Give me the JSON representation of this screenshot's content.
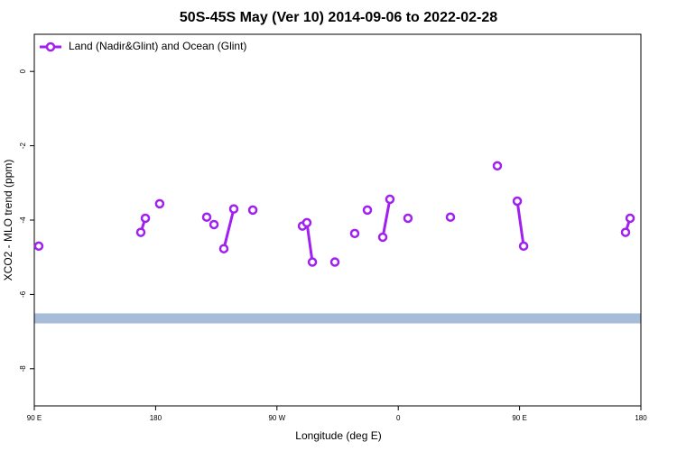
{
  "chart_data": {
    "type": "line",
    "title": "50S-45S May (Ver 10)   2014-09-06 to 2022-02-28",
    "x_label": "Longitude (deg E)",
    "y_label": "XCO2 - MLO trend (ppm)",
    "xlim": [
      90,
      540
    ],
    "xticks": [
      {
        "value": 90,
        "label": "90 E"
      },
      180,
      {
        "value": 270,
        "label": "90 W"
      },
      {
        "value": 360,
        "label": "0"
      },
      {
        "value": 450,
        "label": "90 E"
      },
      {
        "value": 540,
        "label": "180"
      }
    ],
    "ylim": [
      -9,
      1
    ],
    "yticks": [
      0,
      -2,
      -4,
      -6,
      -8
    ],
    "band": [
      -6.78,
      -6.51
    ],
    "band_color": "#a7bcd9",
    "legend": "top-left",
    "series": [
      {
        "name": "Land (Nadir&Glint) and Ocean (Glint)",
        "color": "#a020f0",
        "x": [
          93.3,
          null,
          169.0,
          172.4,
          null,
          183.0,
          null,
          217.9,
          null,
          223.3,
          null,
          230.6,
          238.0,
          null,
          252.1,
          null,
          288.9,
          292.2,
          296.3,
          null,
          313.0,
          null,
          327.7,
          null,
          337.1,
          null,
          348.5,
          353.8,
          null,
          367.2,
          null,
          398.7,
          null,
          433.5,
          null,
          448.3,
          453.0,
          null,
          528.6,
          532.0
        ],
        "values": [
          -4.7,
          null,
          -4.33,
          -3.95,
          null,
          -3.56,
          null,
          -3.92,
          null,
          -4.12,
          null,
          -4.77,
          -3.7,
          null,
          -3.73,
          null,
          -4.16,
          -4.07,
          -5.13,
          null,
          -5.13,
          null,
          -4.36,
          null,
          -3.73,
          null,
          -4.46,
          -3.44,
          null,
          -3.95,
          null,
          -3.92,
          null,
          -2.54,
          null,
          -3.49,
          -4.7,
          null,
          -4.33,
          -3.95
        ]
      }
    ]
  }
}
